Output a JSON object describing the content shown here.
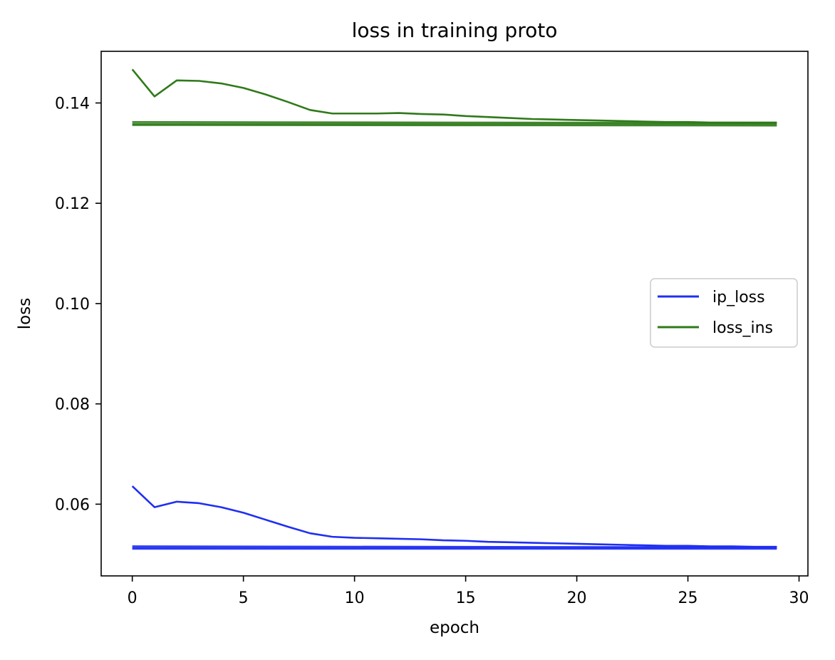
{
  "chart_data": {
    "type": "line",
    "title": "loss in training proto",
    "xlabel": "epoch",
    "ylabel": "loss",
    "xlim": [
      -1.4,
      30.4
    ],
    "ylim": [
      0.0457,
      0.1503
    ],
    "xticks": [
      0,
      5,
      10,
      15,
      20,
      25,
      30
    ],
    "xtick_labels": [
      "0",
      "5",
      "10",
      "15",
      "20",
      "25",
      "30"
    ],
    "yticks": [
      0.06,
      0.08,
      0.1,
      0.12,
      0.14
    ],
    "ytick_labels": [
      "0.06",
      "0.08",
      "0.10",
      "0.12",
      "0.14"
    ],
    "grid": false,
    "legend_position": "center-right",
    "series": [
      {
        "name": "ip_loss",
        "color": "#1f2ff2",
        "note": "descending curve plus near-flat lines at ~0.0513",
        "x": [
          0,
          1,
          2,
          3,
          4,
          5,
          6,
          7,
          8,
          9,
          10,
          11,
          12,
          13,
          14,
          15,
          16,
          17,
          18,
          19,
          20,
          21,
          22,
          23,
          24,
          25,
          26,
          27,
          28,
          29
        ],
        "values": [
          0.0636,
          0.0594,
          0.0605,
          0.0602,
          0.0594,
          0.0583,
          0.0569,
          0.0555,
          0.0542,
          0.0535,
          0.0533,
          0.0532,
          0.0531,
          0.053,
          0.0528,
          0.0527,
          0.0525,
          0.0524,
          0.0523,
          0.0522,
          0.0521,
          0.052,
          0.0519,
          0.0518,
          0.0517,
          0.0517,
          0.0516,
          0.0516,
          0.0515,
          0.0515
        ],
        "flat_lines": [
          [
            0.0516,
            0.0514
          ],
          [
            0.0513,
            0.0513
          ],
          [
            0.0511,
            0.0511
          ]
        ]
      },
      {
        "name": "loss_ins",
        "color": "#2f7a1a",
        "note": "descending curve plus near-flat lines at ~0.1358",
        "x": [
          0,
          1,
          2,
          3,
          4,
          5,
          6,
          7,
          8,
          9,
          10,
          11,
          12,
          13,
          14,
          15,
          16,
          17,
          18,
          19,
          20,
          21,
          22,
          23,
          24,
          25,
          26,
          27,
          28,
          29
        ],
        "values": [
          0.1467,
          0.1413,
          0.1445,
          0.1444,
          0.1439,
          0.143,
          0.1417,
          0.1402,
          0.1386,
          0.1379,
          0.1379,
          0.1379,
          0.138,
          0.1378,
          0.1377,
          0.1374,
          0.1372,
          0.137,
          0.1368,
          0.1367,
          0.1366,
          0.1365,
          0.1364,
          0.1363,
          0.1362,
          0.1362,
          0.1361,
          0.1361,
          0.1361,
          0.1361
        ],
        "flat_lines": [
          [
            0.1362,
            0.136
          ],
          [
            0.1358,
            0.1358
          ],
          [
            0.1356,
            0.1355
          ]
        ]
      }
    ]
  }
}
